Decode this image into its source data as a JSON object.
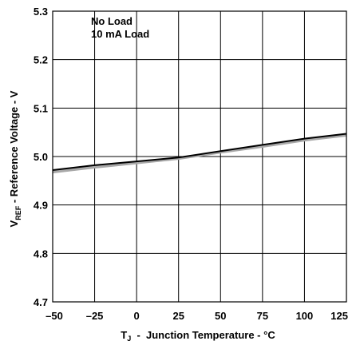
{
  "chart_data": {
    "type": "line",
    "title": "",
    "xlabel": {
      "main": "T",
      "sub": "J",
      "rest": "  -  Junction Temperature - °C"
    },
    "ylabel": {
      "main": "V",
      "sub": "REF",
      "rest": " - Reference Voltage - V"
    },
    "xlim": [
      -50,
      125
    ],
    "ylim": [
      4.7,
      5.3
    ],
    "x_ticks": [
      -50,
      -25,
      0,
      25,
      50,
      75,
      100,
      125
    ],
    "y_ticks": [
      4.7,
      4.8,
      4.9,
      5.0,
      5.1,
      5.2,
      5.3
    ],
    "x_tick_labels": [
      "–50",
      "–25",
      "0",
      "25",
      "50",
      "75",
      "100",
      "125"
    ],
    "y_tick_labels": [
      "4.7",
      "4.8",
      "4.9",
      "5.0",
      "5.1",
      "5.2",
      "5.3"
    ],
    "grid": true,
    "legend_position": "top-left",
    "series": [
      {
        "name": "No Load",
        "color": "#000000",
        "x": [
          -50,
          -25,
          0,
          25,
          50,
          75,
          100,
          125
        ],
        "y": [
          4.972,
          4.982,
          4.99,
          4.998,
          5.011,
          5.024,
          5.037,
          5.047
        ]
      },
      {
        "name": "10 mA Load",
        "color": "#a8a8a8",
        "x": [
          -50,
          -25,
          0,
          25,
          50,
          75,
          100,
          125
        ],
        "y": [
          4.968,
          4.978,
          4.987,
          4.996,
          5.009,
          5.021,
          5.034,
          5.044
        ]
      }
    ]
  }
}
